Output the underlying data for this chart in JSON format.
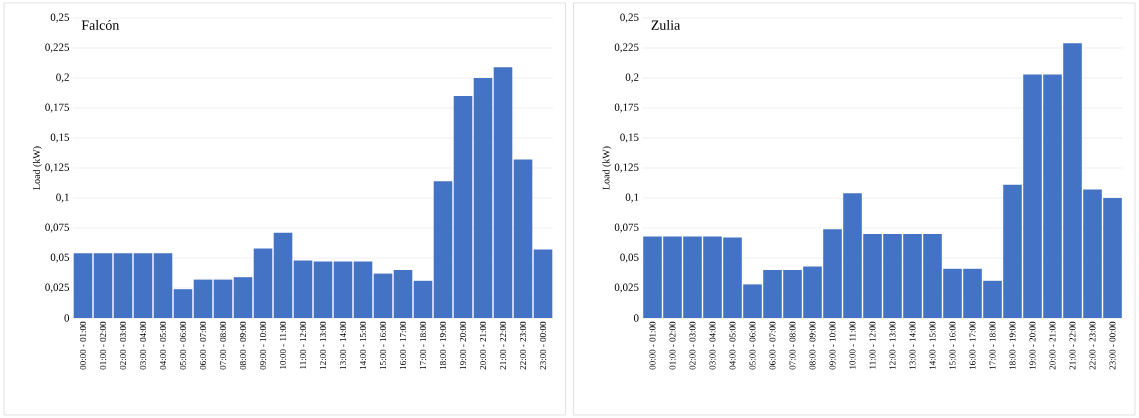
{
  "chart_data": [
    {
      "type": "bar",
      "title": "Falcón",
      "ylabel": "Load (kW)",
      "categories": [
        "00:00 - 01:00",
        "01:00 - 02:00",
        "02:00 - 03:00",
        "03:00 - 04:00",
        "04:00 - 05:00",
        "05:00 - 06:00",
        "06:00 - 07:00",
        "07:00 - 08:00",
        "08:00 - 09:00",
        "09:00 - 10:00",
        "10:00 - 11:00",
        "11:00 - 12:00",
        "12:00 - 13:00",
        "13:00 - 14:00",
        "14:00 - 15:00",
        "15:00 - 16:00",
        "16:00 - 17:00",
        "17:00 - 18:00",
        "18:00 - 19:00",
        "19:00 - 20:00",
        "20:00 - 21:00",
        "21:00 - 22:00",
        "22:00 - 23:00",
        "23:00 - 00:00"
      ],
      "values": [
        0.054,
        0.054,
        0.054,
        0.054,
        0.054,
        0.024,
        0.032,
        0.032,
        0.034,
        0.058,
        0.071,
        0.048,
        0.047,
        0.047,
        0.047,
        0.037,
        0.04,
        0.031,
        0.114,
        0.185,
        0.2,
        0.209,
        0.132,
        0.057
      ],
      "color": "#4472c4",
      "ylim": [
        0,
        0.25
      ],
      "yticks": [
        0,
        {
          "value": 0.025,
          "label": "0,025"
        },
        {
          "value": 0.05,
          "label": "0,05"
        },
        {
          "value": 0.075,
          "label": "0,075"
        },
        {
          "value": 0.1,
          "label": "0,1"
        },
        {
          "value": 0.125,
          "label": "0,125"
        },
        {
          "value": 0.15,
          "label": "0,15"
        },
        {
          "value": 0.175,
          "label": "0,175"
        },
        {
          "value": 0.2,
          "label": "0,2"
        },
        {
          "value": 0.225,
          "label": "0,225"
        },
        {
          "value": 0.25,
          "label": "0,25"
        }
      ],
      "grid": "y"
    },
    {
      "type": "bar",
      "title": "Zulia",
      "ylabel": "Load (kW)",
      "categories": [
        "00:00 - 01:00",
        "01:00 - 02:00",
        "02:00 - 03:00",
        "03:00 - 04:00",
        "04:00 - 05:00",
        "05:00 - 06:00",
        "06:00 - 07:00",
        "07:00 - 08:00",
        "08:00 - 09:00",
        "09:00 - 10:00",
        "10:00 - 11:00",
        "11:00 - 12:00",
        "12:00 - 13:00",
        "13:00 - 14:00",
        "14:00 - 15:00",
        "15:00 - 16:00",
        "16:00 - 17:00",
        "17:00 - 18:00",
        "18:00 - 19:00",
        "19:00 - 20:00",
        "20:00 - 21:00",
        "21:00 - 22:00",
        "22:00 - 23:00",
        "23:00 - 00:00"
      ],
      "values": [
        0.068,
        0.068,
        0.068,
        0.068,
        0.067,
        0.028,
        0.04,
        0.04,
        0.043,
        0.074,
        0.104,
        0.07,
        0.07,
        0.07,
        0.07,
        0.041,
        0.041,
        0.031,
        0.111,
        0.203,
        0.203,
        0.229,
        0.107,
        0.1
      ],
      "color": "#4472c4",
      "ylim": [
        0,
        0.25
      ],
      "yticks": [
        0,
        {
          "value": 0.025,
          "label": "0,025"
        },
        {
          "value": 0.05,
          "label": "0,05"
        },
        {
          "value": 0.075,
          "label": "0,075"
        },
        {
          "value": 0.1,
          "label": "0,1"
        },
        {
          "value": 0.125,
          "label": "0,125"
        },
        {
          "value": 0.15,
          "label": "0,15"
        },
        {
          "value": 0.175,
          "label": "0,175"
        },
        {
          "value": 0.2,
          "label": "0,2"
        },
        {
          "value": 0.225,
          "label": "0,225"
        },
        {
          "value": 0.25,
          "label": "0,25"
        }
      ],
      "grid": "y"
    }
  ]
}
